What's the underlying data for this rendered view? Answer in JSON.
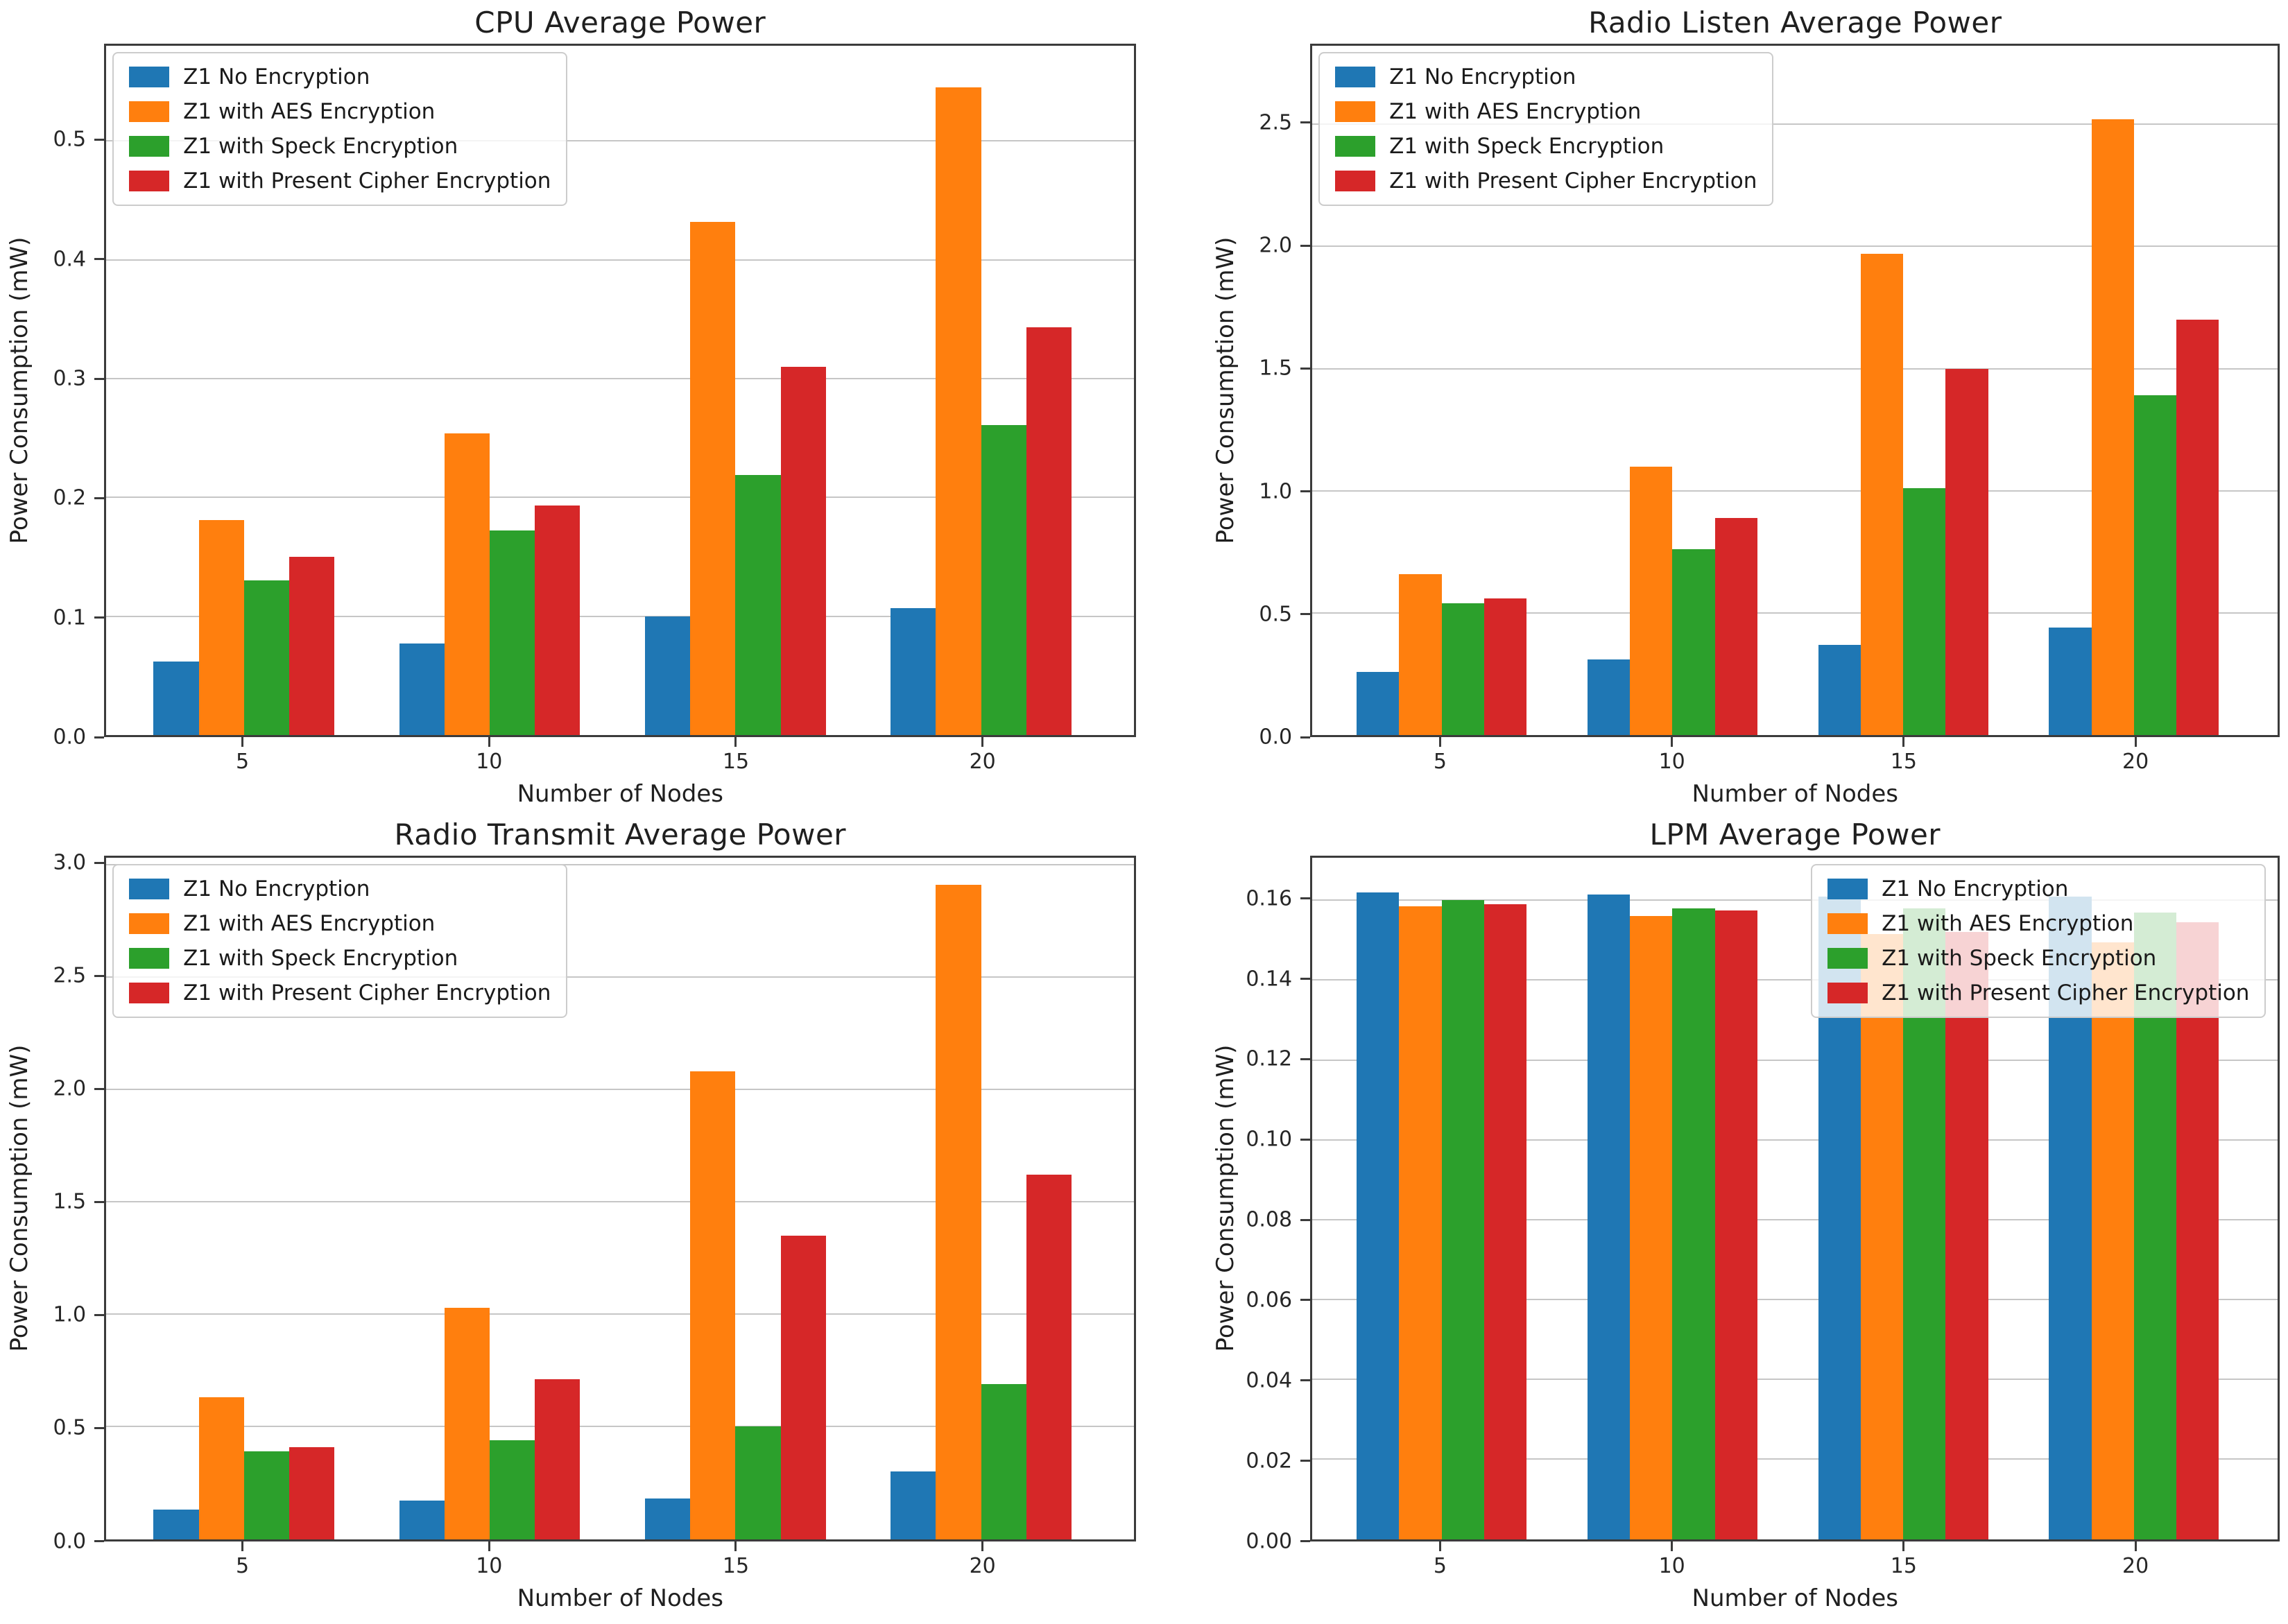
{
  "figure": {
    "background": "#ffffff",
    "text_color": "#1a1a1a",
    "grid_color": "#c6c6c6",
    "spine_color": "#3b3b3b"
  },
  "chart_data": [
    {
      "type": "bar",
      "title": "CPU Average Power",
      "xlabel": "Number of Nodes",
      "ylabel": "Power Consumption (mW)",
      "categories": [
        "5",
        "10",
        "15",
        "20"
      ],
      "yticks": [
        0.0,
        0.1,
        0.2,
        0.3,
        0.4,
        0.5
      ],
      "ytick_decimals": 1,
      "ylim": [
        0,
        0.58
      ],
      "grid": true,
      "legend_position": "upper-left",
      "series": [
        {
          "name": "Z1 No Encryption",
          "color": "#1f77b4",
          "values": [
            0.062,
            0.077,
            0.1,
            0.107
          ]
        },
        {
          "name": "Z1 with AES Encryption",
          "color": "#ff7f0e",
          "values": [
            0.181,
            0.254,
            0.432,
            0.545
          ]
        },
        {
          "name": "Z1 with Speck Encryption",
          "color": "#2ca02c",
          "values": [
            0.13,
            0.172,
            0.219,
            0.261
          ]
        },
        {
          "name": "Z1 with Present Cipher Encryption",
          "color": "#d62728",
          "values": [
            0.15,
            0.193,
            0.31,
            0.343
          ]
        }
      ]
    },
    {
      "type": "bar",
      "title": "Radio Listen Average Power",
      "xlabel": "Number of Nodes",
      "ylabel": "Power Consumption (mW)",
      "categories": [
        "5",
        "10",
        "15",
        "20"
      ],
      "yticks": [
        0.0,
        0.5,
        1.0,
        1.5,
        2.0,
        2.5
      ],
      "ytick_decimals": 1,
      "ylim": [
        0,
        2.82
      ],
      "grid": true,
      "legend_position": "upper-left",
      "series": [
        {
          "name": "Z1 No Encryption",
          "color": "#1f77b4",
          "values": [
            0.26,
            0.31,
            0.37,
            0.44
          ]
        },
        {
          "name": "Z1 with AES Encryption",
          "color": "#ff7f0e",
          "values": [
            0.66,
            1.1,
            1.97,
            2.52
          ]
        },
        {
          "name": "Z1 with Speck Encryption",
          "color": "#2ca02c",
          "values": [
            0.54,
            0.76,
            1.01,
            1.39
          ]
        },
        {
          "name": "Z1 with Present Cipher Encryption",
          "color": "#d62728",
          "values": [
            0.56,
            0.89,
            1.5,
            1.7
          ]
        }
      ]
    },
    {
      "type": "bar",
      "title": "Radio Transmit Average Power",
      "xlabel": "Number of Nodes",
      "ylabel": "Power Consumption (mW)",
      "categories": [
        "5",
        "10",
        "15",
        "20"
      ],
      "yticks": [
        0.0,
        0.5,
        1.0,
        1.5,
        2.0,
        2.5,
        3.0
      ],
      "ytick_decimals": 1,
      "ylim": [
        0,
        3.03
      ],
      "grid": true,
      "legend_position": "upper-left",
      "series": [
        {
          "name": "Z1 No Encryption",
          "color": "#1f77b4",
          "values": [
            0.13,
            0.17,
            0.18,
            0.3
          ]
        },
        {
          "name": "Z1 with AES Encryption",
          "color": "#ff7f0e",
          "values": [
            0.63,
            1.03,
            2.08,
            2.91
          ]
        },
        {
          "name": "Z1 with Speck Encryption",
          "color": "#2ca02c",
          "values": [
            0.39,
            0.44,
            0.5,
            0.69
          ]
        },
        {
          "name": "Z1 with Present Cipher Encryption",
          "color": "#d62728",
          "values": [
            0.41,
            0.71,
            1.35,
            1.62
          ]
        }
      ]
    },
    {
      "type": "bar",
      "title": "LPM Average Power",
      "xlabel": "Number of Nodes",
      "ylabel": "Power Consumption (mW)",
      "categories": [
        "5",
        "10",
        "15",
        "20"
      ],
      "yticks": [
        0.0,
        0.02,
        0.04,
        0.06,
        0.08,
        0.1,
        0.12,
        0.14,
        0.16
      ],
      "ytick_decimals": 2,
      "ylim": [
        0,
        0.1706
      ],
      "grid": true,
      "legend_position": "upper-right",
      "series": [
        {
          "name": "Z1 No Encryption",
          "color": "#1f77b4",
          "values": [
            0.162,
            0.1615,
            0.161,
            0.161
          ]
        },
        {
          "name": "Z1 with AES Encryption",
          "color": "#ff7f0e",
          "values": [
            0.1585,
            0.156,
            0.1515,
            0.1495
          ]
        },
        {
          "name": "Z1 with Speck Encryption",
          "color": "#2ca02c",
          "values": [
            0.16,
            0.158,
            0.158,
            0.157
          ]
        },
        {
          "name": "Z1 with Present Cipher Encryption",
          "color": "#d62728",
          "values": [
            0.159,
            0.1575,
            0.152,
            0.1545
          ]
        }
      ]
    }
  ]
}
